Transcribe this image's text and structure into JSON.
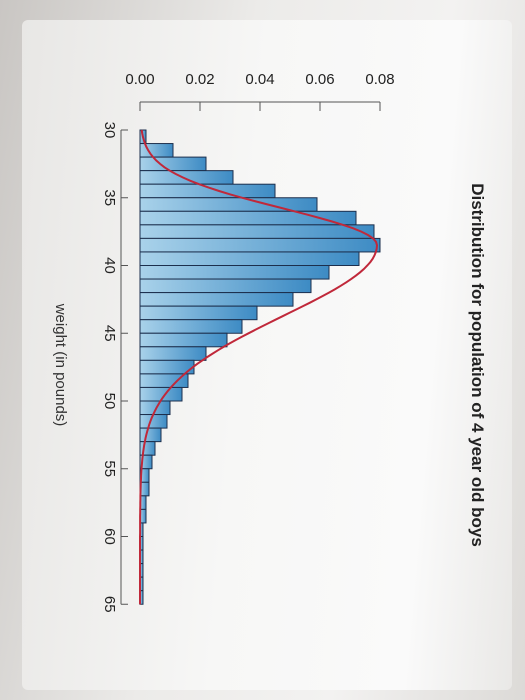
{
  "chart_data": {
    "type": "bar",
    "title": "Distribution for population of 4 year old boys",
    "xlabel": "weight (in pounds)",
    "ylabel": "",
    "xlim": [
      30,
      65
    ],
    "ylim": [
      0,
      0.08
    ],
    "x_ticks": [
      30,
      35,
      40,
      45,
      50,
      55,
      60,
      65
    ],
    "y_ticks": [
      "0.00",
      "0.02",
      "0.04",
      "0.06",
      "0.08"
    ],
    "bin_width": 1,
    "bins": [
      {
        "x": 30,
        "value": 0.002
      },
      {
        "x": 31,
        "value": 0.011
      },
      {
        "x": 32,
        "value": 0.022
      },
      {
        "x": 33,
        "value": 0.031
      },
      {
        "x": 34,
        "value": 0.045
      },
      {
        "x": 35,
        "value": 0.059
      },
      {
        "x": 36,
        "value": 0.072
      },
      {
        "x": 37,
        "value": 0.078
      },
      {
        "x": 38,
        "value": 0.08
      },
      {
        "x": 39,
        "value": 0.073
      },
      {
        "x": 40,
        "value": 0.063
      },
      {
        "x": 41,
        "value": 0.057
      },
      {
        "x": 42,
        "value": 0.051
      },
      {
        "x": 43,
        "value": 0.039
      },
      {
        "x": 44,
        "value": 0.034
      },
      {
        "x": 45,
        "value": 0.029
      },
      {
        "x": 46,
        "value": 0.022
      },
      {
        "x": 47,
        "value": 0.018
      },
      {
        "x": 48,
        "value": 0.016
      },
      {
        "x": 49,
        "value": 0.014
      },
      {
        "x": 50,
        "value": 0.01
      },
      {
        "x": 51,
        "value": 0.009
      },
      {
        "x": 52,
        "value": 0.007
      },
      {
        "x": 53,
        "value": 0.005
      },
      {
        "x": 54,
        "value": 0.004
      },
      {
        "x": 55,
        "value": 0.003
      },
      {
        "x": 56,
        "value": 0.003
      },
      {
        "x": 57,
        "value": 0.002
      },
      {
        "x": 58,
        "value": 0.002
      },
      {
        "x": 59,
        "value": 0.001
      },
      {
        "x": 60,
        "value": 0.001
      },
      {
        "x": 61,
        "value": 0.001
      },
      {
        "x": 62,
        "value": 0.001
      },
      {
        "x": 63,
        "value": 0.001
      },
      {
        "x": 64,
        "value": 0.001
      }
    ],
    "curve": {
      "type": "density",
      "mode": 38.5,
      "peak": 0.079,
      "left_spread": 2.7,
      "right_spread": 5.2
    },
    "colors": {
      "bar_fill_top": "#a9d2ea",
      "bar_fill_bottom": "#3d8bc4",
      "bar_stroke": "#1c2f4d",
      "curve": "#c0283a",
      "axis": "#555555",
      "text": "#222222"
    },
    "orientation": "rotated-90-clockwise",
    "grid": false,
    "legend": "none"
  }
}
